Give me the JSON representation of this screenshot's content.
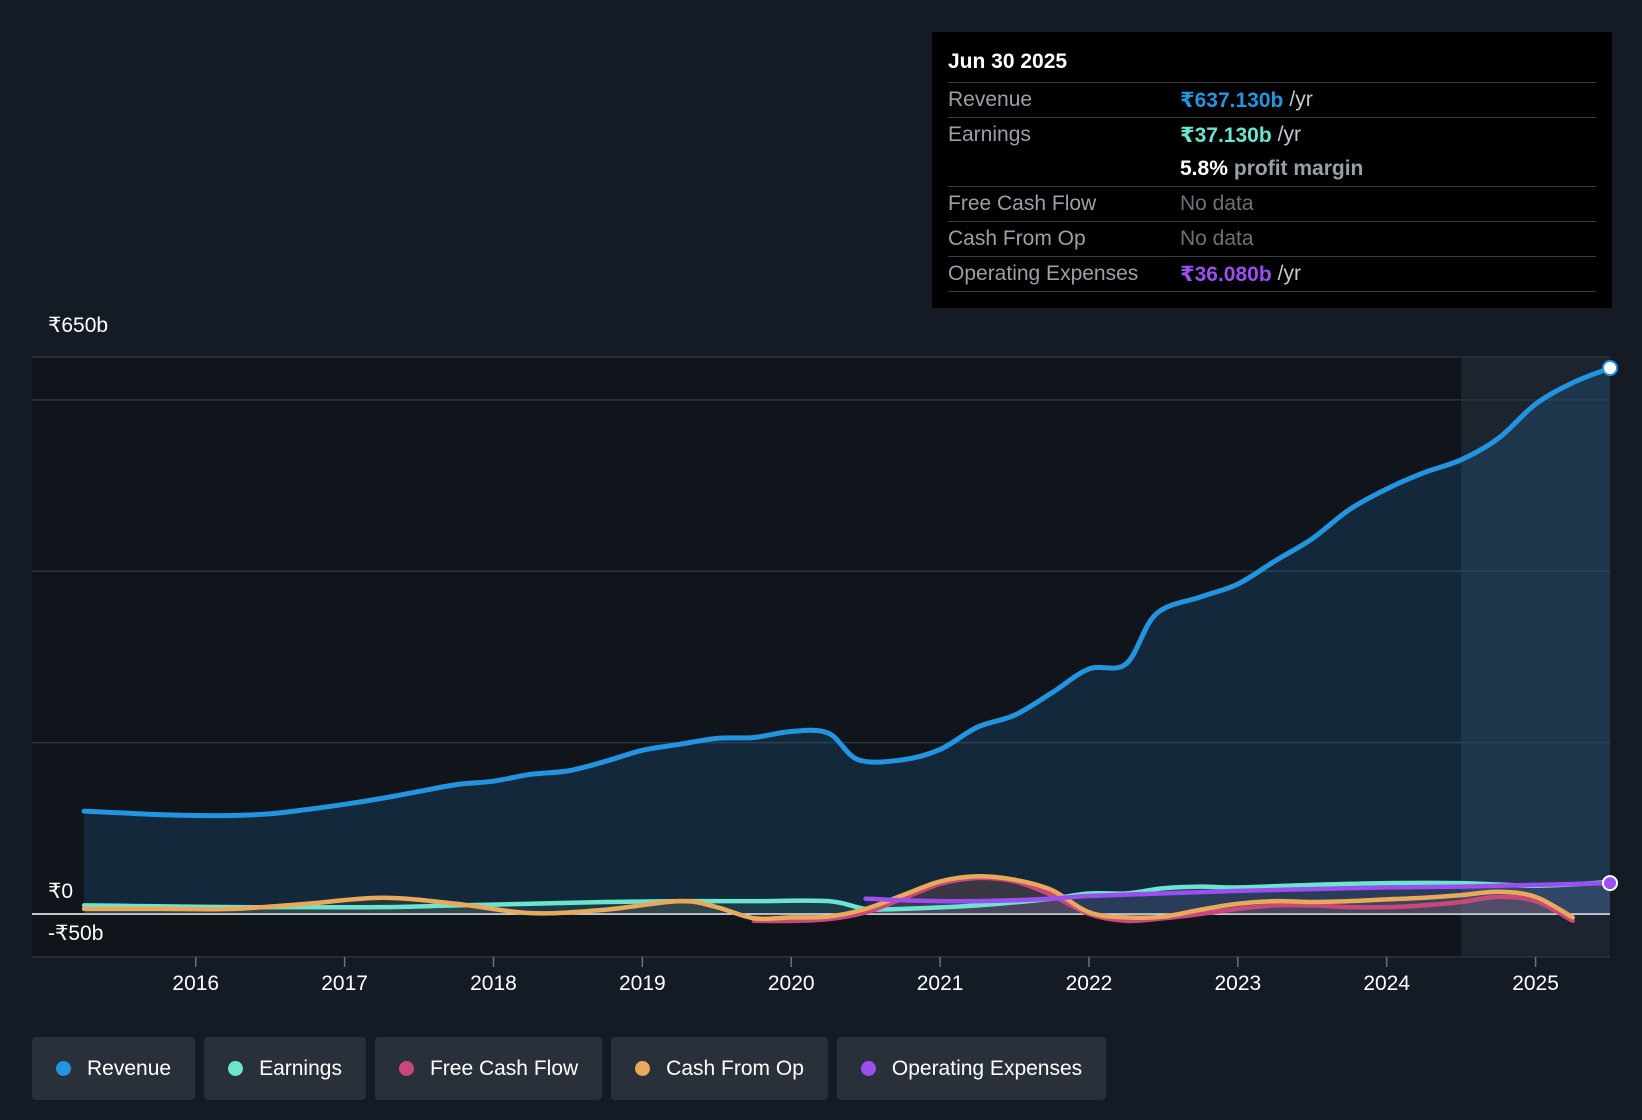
{
  "tooltip": {
    "date": "Jun 30 2025",
    "rows": [
      {
        "label": "Revenue",
        "value": "₹637.130b",
        "unit": "/yr"
      },
      {
        "label": "Earnings",
        "value": "₹37.130b",
        "unit": "/yr"
      },
      {
        "margin_value": "5.8%",
        "margin_text": "profit margin"
      },
      {
        "label": "Free Cash Flow",
        "value": "No data"
      },
      {
        "label": "Cash From Op",
        "value": "No data"
      },
      {
        "label": "Operating Expenses",
        "value": "₹36.080b",
        "unit": "/yr"
      }
    ]
  },
  "colors": {
    "revenue": "#2394df",
    "earnings": "#6ce5d0",
    "fcf": "#c8487c",
    "cfo": "#e8a95a",
    "opex": "#9b4ff0"
  },
  "chart_data": {
    "type": "line",
    "title": "",
    "y_labels": [
      "₹650b",
      "₹0",
      "-₹50b"
    ],
    "ylim": [
      -50,
      650
    ],
    "xlim": [
      2014.9,
      2025.5
    ],
    "x_ticks": [
      "2016",
      "2017",
      "2018",
      "2019",
      "2020",
      "2021",
      "2022",
      "2023",
      "2024",
      "2025"
    ],
    "x_tick_values": [
      2016,
      2017,
      2018,
      2019,
      2020,
      2021,
      2022,
      2023,
      2024,
      2025
    ],
    "forecast_start": 2024.5,
    "series": [
      {
        "name": "Revenue",
        "key": "revenue",
        "area": true,
        "x": [
          2015.25,
          2015.5,
          2015.75,
          2016.0,
          2016.25,
          2016.5,
          2016.75,
          2017.0,
          2017.25,
          2017.5,
          2017.75,
          2018.0,
          2018.25,
          2018.5,
          2018.75,
          2019.0,
          2019.25,
          2019.5,
          2019.75,
          2020.0,
          2020.25,
          2020.45,
          2020.75,
          2021.0,
          2021.25,
          2021.5,
          2021.75,
          2022.0,
          2022.25,
          2022.45,
          2022.75,
          2023.0,
          2023.25,
          2023.5,
          2023.75,
          2024.0,
          2024.25,
          2024.5,
          2024.75,
          2025.0,
          2025.25,
          2025.5
        ],
        "values": [
          120,
          118,
          116,
          115,
          115,
          117,
          122,
          128,
          135,
          143,
          151,
          155,
          163,
          167,
          178,
          191,
          198,
          205,
          206,
          213,
          211,
          180,
          180,
          192,
          218,
          232,
          258,
          286,
          292,
          350,
          370,
          385,
          412,
          438,
          472,
          496,
          515,
          530,
          555,
          595,
          620,
          637.13
        ]
      },
      {
        "name": "Earnings",
        "key": "earnings",
        "x": [
          2015.25,
          2015.75,
          2016.25,
          2016.75,
          2017.25,
          2017.75,
          2018.25,
          2018.75,
          2019.25,
          2019.75,
          2020.25,
          2020.5,
          2020.75,
          2021.25,
          2021.75,
          2022.0,
          2022.25,
          2022.5,
          2022.75,
          2023.0,
          2023.5,
          2024.0,
          2024.5,
          2025.0,
          2025.5
        ],
        "values": [
          10,
          9,
          8,
          8,
          8,
          10,
          12,
          14,
          15,
          15,
          15,
          6,
          6,
          10,
          18,
          24,
          24,
          30,
          32,
          31,
          34,
          36,
          36,
          33,
          37.13
        ]
      },
      {
        "name": "Free Cash Flow",
        "key": "fcf",
        "x": [
          2019.75,
          2020.0,
          2020.25,
          2020.5,
          2020.75,
          2021.0,
          2021.25,
          2021.5,
          2021.75,
          2022.0,
          2022.25,
          2022.5,
          2022.75,
          2023.0,
          2023.25,
          2023.5,
          2023.75,
          2024.0,
          2024.25,
          2024.5,
          2024.75,
          2025.0,
          2025.25
        ],
        "values": [
          -8,
          -8,
          -6,
          2,
          18,
          35,
          42,
          38,
          22,
          0,
          -8,
          -5,
          0,
          6,
          10,
          10,
          8,
          8,
          10,
          14,
          20,
          15,
          -8
        ]
      },
      {
        "name": "Cash From Op",
        "key": "cfo",
        "x": [
          2015.25,
          2015.75,
          2016.25,
          2016.75,
          2017.25,
          2017.75,
          2018.25,
          2018.75,
          2019.25,
          2019.5,
          2019.75,
          2020.0,
          2020.25,
          2020.5,
          2020.75,
          2021.0,
          2021.25,
          2021.5,
          2021.75,
          2022.0,
          2022.25,
          2022.5,
          2022.75,
          2023.0,
          2023.25,
          2023.5,
          2023.75,
          2024.0,
          2024.25,
          2024.5,
          2024.75,
          2025.0,
          2025.25
        ],
        "values": [
          6,
          6,
          6,
          12,
          19,
          12,
          1,
          5,
          15,
          8,
          -5,
          -4,
          -3,
          6,
          22,
          38,
          44,
          40,
          28,
          2,
          -4,
          -3,
          5,
          12,
          15,
          14,
          15,
          17,
          19,
          22,
          26,
          20,
          -4
        ]
      },
      {
        "name": "Operating Expenses",
        "key": "opex",
        "x": [
          2020.5,
          2020.75,
          2021.0,
          2021.25,
          2021.5,
          2021.75,
          2022.0,
          2022.5,
          2023.0,
          2023.5,
          2024.0,
          2024.5,
          2025.0,
          2025.5
        ],
        "values": [
          18,
          16,
          15,
          15,
          16,
          18,
          21,
          24,
          27,
          29,
          31,
          32,
          34,
          36.08
        ]
      }
    ],
    "legend": [
      "Revenue",
      "Earnings",
      "Free Cash Flow",
      "Cash From Op",
      "Operating Expenses"
    ]
  }
}
